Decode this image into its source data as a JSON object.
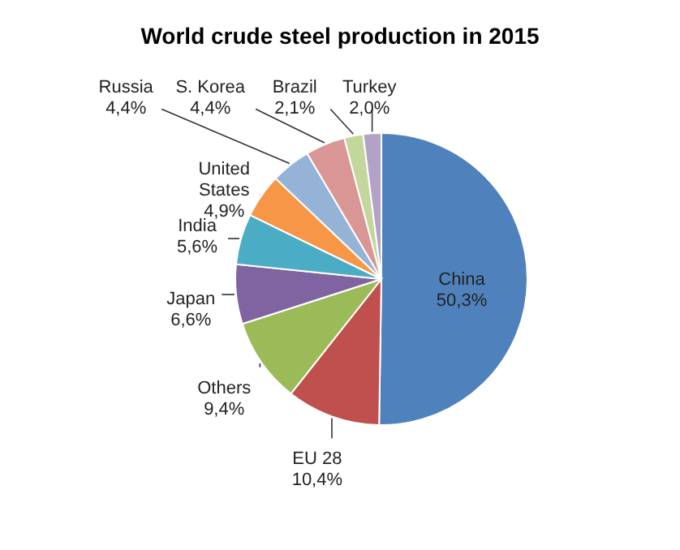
{
  "chart_data": {
    "type": "pie",
    "title": "World crude steel production in 2015",
    "categories": [
      "China",
      "EU 28",
      "Others",
      "Japan",
      "India",
      "United States",
      "Russia",
      "S. Korea",
      "Brazil",
      "Turkey"
    ],
    "values": [
      50.3,
      10.4,
      9.4,
      6.6,
      5.6,
      4.9,
      4.4,
      4.4,
      2.1,
      2.0
    ],
    "value_labels": [
      "50,3%",
      "10,4%",
      "9,4%",
      "6,6%",
      "5,6%",
      "4,9%",
      "4,4%",
      "4,4%",
      "2,1%",
      "2,0%"
    ],
    "colors": [
      "#4f81bd",
      "#c0504d",
      "#9bbb59",
      "#8064a2",
      "#4bacc6",
      "#f79646",
      "#95b3d7",
      "#d99694",
      "#c3d69b",
      "#b3a2c7"
    ]
  }
}
